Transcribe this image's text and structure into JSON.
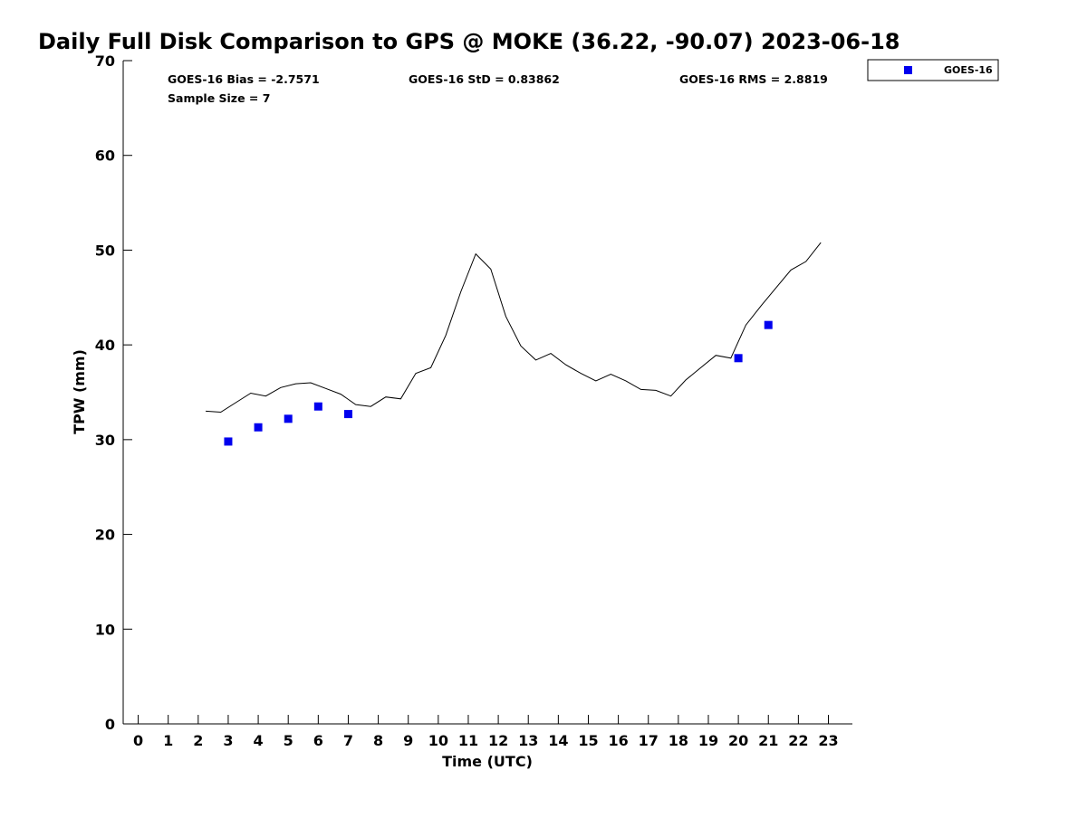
{
  "chart_data": {
    "type": "line",
    "title": "Daily Full Disk Comparison to GPS @ MOKE (36.22, -90.07) 2023-06-18",
    "xlabel": "Time (UTC)",
    "ylabel": "TPW (mm)",
    "xlim": [
      -0.5,
      23.8
    ],
    "ylim": [
      0,
      70
    ],
    "xticks": [
      0,
      1,
      2,
      3,
      4,
      5,
      6,
      7,
      8,
      9,
      10,
      11,
      12,
      13,
      14,
      15,
      16,
      17,
      18,
      19,
      20,
      21,
      22,
      23
    ],
    "yticks": [
      0,
      10,
      20,
      30,
      40,
      50,
      60,
      70
    ],
    "grid": false,
    "legend": {
      "placement": "top-right, outside plot",
      "entries": [
        "GOES-16"
      ]
    },
    "annotations": {
      "bias": "GOES-16 Bias = -2.7571",
      "std": "GOES-16 StD = 0.83862",
      "rms": "GOES-16 RMS = 2.8819",
      "sample": "Sample Size = 7"
    },
    "series": [
      {
        "style": "line",
        "color": "#000000",
        "x": [
          2.25,
          2.75,
          3.25,
          3.75,
          4.25,
          4.75,
          5.25,
          5.75,
          6.25,
          6.75,
          7.25,
          7.75,
          8.25,
          8.75,
          9.25,
          9.75,
          10.25,
          10.75,
          11.25,
          11.75,
          12.25,
          12.75,
          13.25,
          13.75,
          14.25,
          14.75,
          15.25,
          15.75,
          16.25,
          16.75,
          17.25,
          17.75,
          18.25,
          18.75,
          19.25,
          19.75,
          20.25,
          20.75,
          21.25,
          21.75,
          22.25,
          22.75
        ],
        "y": [
          33.0,
          32.9,
          33.9,
          34.9,
          34.6,
          35.5,
          35.9,
          36.0,
          35.4,
          34.8,
          33.7,
          33.5,
          34.5,
          34.3,
          37.0,
          37.6,
          41.0,
          45.6,
          49.6,
          48.0,
          43.0,
          39.9,
          38.4,
          39.1,
          37.9,
          37.0,
          36.2,
          36.9,
          36.2,
          35.3,
          35.2,
          34.6,
          36.3,
          37.6,
          38.9,
          38.6,
          42.1,
          44.1,
          46.0,
          47.9,
          48.8,
          50.8
        ]
      },
      {
        "name": "GOES-16",
        "style": "square-marker",
        "color": "#0000ee",
        "x": [
          3,
          4,
          5,
          6,
          7,
          20,
          21
        ],
        "y": [
          29.8,
          31.3,
          32.2,
          33.5,
          32.7,
          38.6,
          42.1
        ]
      }
    ]
  }
}
